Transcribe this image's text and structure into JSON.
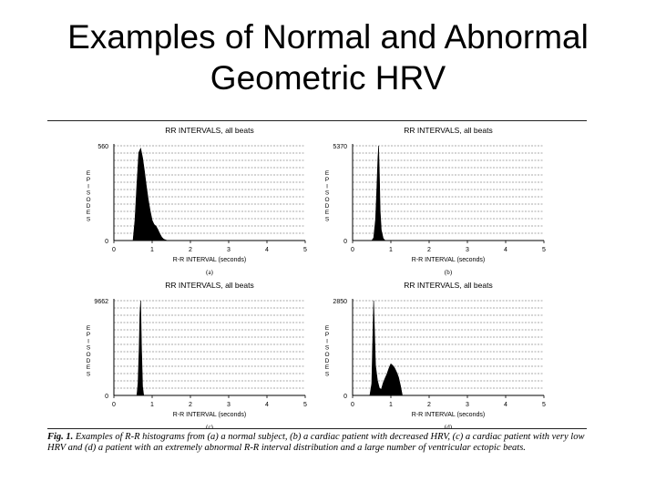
{
  "slide": {
    "title_line1": "Examples of Normal and Abnormal",
    "title_line2": "Geometric HRV"
  },
  "caption": {
    "label": "Fig. 1.",
    "text": "Examples of R-R histograms from (a) a normal subject, (b) a cardiac patient with decreased HRV, (c) a cardiac patient with very low HRV and (d) a patient with an extremely abnormal R-R interval distribution and a large number of ventricular ectopic beats."
  },
  "chart_data": [
    {
      "type": "area",
      "panel_label": "(a)",
      "title": "RR INTERVALS, all beats",
      "xlabel": "R-R INTERVAL (seconds)",
      "ylabel": "EPISODES",
      "xlim": [
        0,
        5
      ],
      "xticks": [
        "0",
        "1",
        "2",
        "3",
        "4",
        "5"
      ],
      "ylim": [
        0,
        560
      ],
      "yticks": [
        "0",
        "560"
      ],
      "gridlines": 13,
      "x": [
        0.5,
        0.55,
        0.6,
        0.65,
        0.7,
        0.75,
        0.8,
        0.85,
        0.9,
        0.95,
        1.0,
        1.05,
        1.1,
        1.15,
        1.2,
        1.25,
        1.3,
        1.4
      ],
      "y": [
        0,
        120,
        330,
        520,
        545,
        490,
        410,
        320,
        240,
        175,
        120,
        95,
        85,
        65,
        40,
        20,
        8,
        0
      ]
    },
    {
      "type": "area",
      "panel_label": "(b)",
      "title": "RR INTERVALS, all beats",
      "xlabel": "R-R INTERVAL (seconds)",
      "ylabel": "EPISODES",
      "xlim": [
        0,
        5
      ],
      "xticks": [
        "0",
        "1",
        "2",
        "3",
        "4",
        "5"
      ],
      "ylim": [
        0,
        5370
      ],
      "yticks": [
        "0",
        "5370"
      ],
      "gridlines": 13,
      "x": [
        0.5,
        0.55,
        0.6,
        0.63,
        0.66,
        0.68,
        0.7,
        0.72,
        0.75,
        0.8,
        0.85
      ],
      "y": [
        0,
        150,
        1200,
        2800,
        4600,
        5370,
        3800,
        1700,
        600,
        120,
        0
      ]
    },
    {
      "type": "area",
      "panel_label": "(c)",
      "title": "RR INTERVALS, all beats",
      "xlabel": "R-R INTERVAL (seconds)",
      "ylabel": "EPISODES",
      "xlim": [
        0,
        5
      ],
      "xticks": [
        "0",
        "1",
        "2",
        "3",
        "4",
        "5"
      ],
      "ylim": [
        0,
        9662
      ],
      "yticks": [
        "0",
        "9662"
      ],
      "gridlines": 13,
      "x": [
        0.6,
        0.63,
        0.66,
        0.68,
        0.7,
        0.72,
        0.75,
        0.78
      ],
      "y": [
        0,
        1200,
        4800,
        8400,
        9662,
        5200,
        900,
        0
      ]
    },
    {
      "type": "area",
      "panel_label": "(d)",
      "title": "RR INTERVALS, all beats",
      "xlabel": "R-R INTERVAL (seconds)",
      "ylabel": "EPISODES",
      "xlim": [
        0,
        5
      ],
      "xticks": [
        "0",
        "1",
        "2",
        "3",
        "4",
        "5"
      ],
      "ylim": [
        0,
        2850
      ],
      "yticks": [
        "0",
        "2850"
      ],
      "gridlines": 13,
      "x": [
        0.45,
        0.5,
        0.55,
        0.6,
        0.65,
        0.7,
        0.75,
        0.8,
        0.85,
        0.9,
        0.95,
        1.0,
        1.05,
        1.1,
        1.15,
        1.2,
        1.25,
        1.3
      ],
      "y": [
        0,
        350,
        2850,
        900,
        450,
        220,
        180,
        380,
        520,
        650,
        820,
        950,
        900,
        820,
        700,
        550,
        300,
        0
      ]
    }
  ]
}
